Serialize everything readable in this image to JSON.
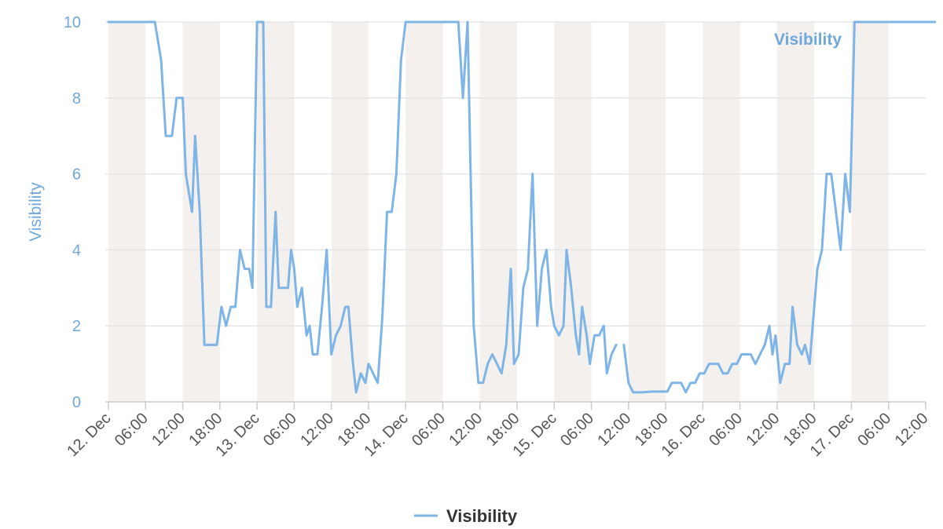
{
  "chart_data": {
    "type": "line",
    "title": "",
    "xlabel": "",
    "ylabel": "Visibility",
    "ylim": [
      0,
      10
    ],
    "yticks": [
      "0",
      "2",
      "4",
      "6",
      "8",
      "10"
    ],
    "grid": true,
    "legend_position": "bottom-center",
    "x_tick_labels": [
      "12. Dec",
      "06:00",
      "12:00",
      "18:00",
      "13. Dec",
      "06:00",
      "12:00",
      "18:00",
      "14. Dec",
      "06:00",
      "12:00",
      "18:00",
      "15. Dec",
      "06:00",
      "12:00",
      "18:00",
      "16. Dec",
      "06:00",
      "12:00",
      "18:00",
      "17. Dec",
      "06:00",
      "12:00"
    ],
    "colors": {
      "series": "#7eb5e6",
      "night_band": "#f3f0ed",
      "grid": "#e6e6e6",
      "axis_label": "#6fa8dc",
      "tick_text": "#555555"
    },
    "series": [
      {
        "name": "Visibility",
        "inline_label": "Visibility",
        "points": [
          [
            "12. Dec 00:00",
            10
          ],
          [
            "12. Dec 03:00",
            10
          ],
          [
            "12. Dec 07:30",
            10
          ],
          [
            "12. Dec 08:30",
            9
          ],
          [
            "12. Dec 09:15",
            7
          ],
          [
            "12. Dec 10:15",
            7
          ],
          [
            "12. Dec 11:00",
            8
          ],
          [
            "12. Dec 12:00",
            8
          ],
          [
            "12. Dec 12:30",
            6
          ],
          [
            "12. Dec 13:30",
            5
          ],
          [
            "12. Dec 14:00",
            7
          ],
          [
            "12. Dec 14:45",
            5
          ],
          [
            "12. Dec 15:30",
            1.5
          ],
          [
            "12. Dec 17:30",
            1.5
          ],
          [
            "12. Dec 18:15",
            2.5
          ],
          [
            "12. Dec 19:00",
            2
          ],
          [
            "12. Dec 19:45",
            2.5
          ],
          [
            "12. Dec 20:30",
            2.5
          ],
          [
            "12. Dec 21:15",
            4
          ],
          [
            "12. Dec 22:00",
            3.5
          ],
          [
            "12. Dec 22:45",
            3.5
          ],
          [
            "12. Dec 23:15",
            3
          ],
          [
            "13. Dec 00:00",
            10
          ],
          [
            "13. Dec 01:00",
            10
          ],
          [
            "13. Dec 01:30",
            2.5
          ],
          [
            "13. Dec 02:15",
            2.5
          ],
          [
            "13. Dec 03:00",
            5
          ],
          [
            "13. Dec 03:30",
            3
          ],
          [
            "13. Dec 05:00",
            3
          ],
          [
            "13. Dec 05:30",
            4
          ],
          [
            "13. Dec 06:00",
            3.5
          ],
          [
            "13. Dec 06:30",
            2.5
          ],
          [
            "13. Dec 07:15",
            3
          ],
          [
            "13. Dec 08:00",
            1.75
          ],
          [
            "13. Dec 08:30",
            2
          ],
          [
            "13. Dec 09:00",
            1.25
          ],
          [
            "13. Dec 09:45",
            1.25
          ],
          [
            "13. Dec 10:30",
            2.5
          ],
          [
            "13. Dec 11:15",
            4
          ],
          [
            "13. Dec 12:00",
            1.25
          ],
          [
            "13. Dec 12:45",
            1.75
          ],
          [
            "13. Dec 13:30",
            2
          ],
          [
            "13. Dec 14:15",
            2.5
          ],
          [
            "13. Dec 14:45",
            2.5
          ],
          [
            "13. Dec 15:30",
            1
          ],
          [
            "13. Dec 16:00",
            0.25
          ],
          [
            "13. Dec 16:45",
            0.75
          ],
          [
            "13. Dec 17:30",
            0.5
          ],
          [
            "13. Dec 18:00",
            1
          ],
          [
            "13. Dec 18:45",
            0.75
          ],
          [
            "13. Dec 19:30",
            0.5
          ],
          [
            "13. Dec 20:15",
            2.25
          ],
          [
            "13. Dec 21:00",
            5
          ],
          [
            "13. Dec 21:45",
            5
          ],
          [
            "13. Dec 22:30",
            6
          ],
          [
            "13. Dec 23:15",
            9
          ],
          [
            "14. Dec 00:00",
            10
          ],
          [
            "14. Dec 06:00",
            10
          ],
          [
            "14. Dec 08:30",
            10
          ],
          [
            "14. Dec 09:15",
            8
          ],
          [
            "14. Dec 10:00",
            10
          ],
          [
            "14. Dec 11:00",
            2
          ],
          [
            "14. Dec 11:45",
            0.5
          ],
          [
            "14. Dec 12:30",
            0.5
          ],
          [
            "14. Dec 13:15",
            1
          ],
          [
            "14. Dec 14:00",
            1.25
          ],
          [
            "14. Dec 14:45",
            1
          ],
          [
            "14. Dec 15:30",
            0.75
          ],
          [
            "14. Dec 16:15",
            1.5
          ],
          [
            "14. Dec 17:00",
            3.5
          ],
          [
            "14. Dec 17:30",
            1
          ],
          [
            "14. Dec 18:15",
            1.25
          ],
          [
            "14. Dec 19:00",
            3
          ],
          [
            "14. Dec 19:45",
            3.5
          ],
          [
            "14. Dec 20:30",
            6
          ],
          [
            "14. Dec 21:15",
            2
          ],
          [
            "14. Dec 22:00",
            3.5
          ],
          [
            "14. Dec 22:45",
            4
          ],
          [
            "14. Dec 23:30",
            2.5
          ],
          [
            "15. Dec 00:00",
            2
          ],
          [
            "15. Dec 00:45",
            1.75
          ],
          [
            "15. Dec 01:30",
            2
          ],
          [
            "15. Dec 02:00",
            4
          ],
          [
            "15. Dec 02:45",
            3
          ],
          [
            "15. Dec 03:30",
            1.75
          ],
          [
            "15. Dec 04:00",
            1.25
          ],
          [
            "15. Dec 04:30",
            2.5
          ],
          [
            "15. Dec 05:15",
            1.75
          ],
          [
            "15. Dec 05:45",
            1
          ],
          [
            "15. Dec 06:30",
            1.75
          ],
          [
            "15. Dec 07:15",
            1.75
          ],
          [
            "15. Dec 08:00",
            2
          ],
          [
            "15. Dec 08:30",
            0.75
          ],
          [
            "15. Dec 09:15",
            1.25
          ],
          [
            "15. Dec 10:00",
            1.5
          ],
          null,
          [
            "15. Dec 11:15",
            1.5
          ],
          [
            "15. Dec 12:00",
            0.5
          ],
          [
            "15. Dec 12:45",
            0.25
          ],
          [
            "15. Dec 14:00",
            0.25
          ],
          [
            "15. Dec 16:00",
            0.27
          ],
          [
            "15. Dec 18:15",
            0.27
          ],
          [
            "15. Dec 19:00",
            0.5
          ],
          [
            "15. Dec 20:30",
            0.5
          ],
          [
            "15. Dec 21:15",
            0.25
          ],
          [
            "15. Dec 22:00",
            0.5
          ],
          [
            "15. Dec 22:45",
            0.5
          ],
          [
            "15. Dec 23:30",
            0.75
          ],
          [
            "16. Dec 00:15",
            0.75
          ],
          [
            "16. Dec 01:00",
            1
          ],
          [
            "16. Dec 02:30",
            1
          ],
          [
            "16. Dec 03:15",
            0.75
          ],
          [
            "16. Dec 04:00",
            0.75
          ],
          [
            "16. Dec 04:45",
            1
          ],
          [
            "16. Dec 05:30",
            1
          ],
          [
            "16. Dec 06:15",
            1.25
          ],
          [
            "16. Dec 07:45",
            1.25
          ],
          [
            "16. Dec 08:30",
            1
          ],
          [
            "16. Dec 09:15",
            1.25
          ],
          [
            "16. Dec 10:00",
            1.5
          ],
          [
            "16. Dec 10:45",
            2
          ],
          [
            "16. Dec 11:15",
            1.25
          ],
          [
            "16. Dec 11:45",
            1.75
          ],
          [
            "16. Dec 12:30",
            0.5
          ],
          [
            "16. Dec 13:15",
            1
          ],
          [
            "16. Dec 14:00",
            1
          ],
          [
            "16. Dec 14:30",
            2.5
          ],
          [
            "16. Dec 15:15",
            1.5
          ],
          [
            "16. Dec 16:00",
            1.25
          ],
          [
            "16. Dec 16:30",
            1.5
          ],
          [
            "16. Dec 17:15",
            1
          ],
          [
            "16. Dec 17:45",
            2
          ],
          [
            "16. Dec 18:30",
            3.5
          ],
          [
            "16. Dec 19:15",
            4
          ],
          [
            "16. Dec 20:00",
            6
          ],
          [
            "16. Dec 20:45",
            6
          ],
          [
            "16. Dec 21:30",
            5
          ],
          [
            "16. Dec 22:15",
            4
          ],
          [
            "16. Dec 23:00",
            6
          ],
          [
            "16. Dec 23:45",
            5
          ],
          [
            "17. Dec 00:30",
            10
          ],
          [
            "17. Dec 06:00",
            10
          ],
          [
            "17. Dec 12:00",
            10
          ],
          [
            "17. Dec 13:30",
            10
          ]
        ]
      }
    ]
  },
  "legend": {
    "items": [
      "Visibility"
    ]
  }
}
